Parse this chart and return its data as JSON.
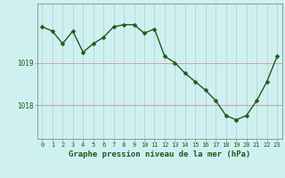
{
  "x": [
    0,
    1,
    2,
    3,
    4,
    5,
    6,
    7,
    8,
    9,
    10,
    11,
    12,
    13,
    14,
    15,
    16,
    17,
    18,
    19,
    20,
    21,
    22,
    23
  ],
  "y": [
    1019.85,
    1019.75,
    1019.45,
    1019.75,
    1019.25,
    1019.45,
    1019.6,
    1019.85,
    1019.9,
    1019.9,
    1019.7,
    1019.8,
    1019.15,
    1019.0,
    1018.75,
    1018.55,
    1018.35,
    1018.1,
    1017.75,
    1017.65,
    1017.75,
    1018.1,
    1018.55,
    1019.15
  ],
  "line_color": "#1a5c1a",
  "marker": "D",
  "marker_size": 2.5,
  "bg_color": "#cff0f0",
  "hgrid_color": "#c8a0a0",
  "vgrid_color": "#b8c8c8",
  "title": "Graphe pression niveau de la mer (hPa)",
  "ylabel_ticks": [
    1018,
    1019
  ],
  "ylim": [
    1017.2,
    1020.4
  ],
  "xlim": [
    -0.5,
    23.5
  ],
  "tick_color": "#1a5c1a",
  "axis_color": "#888888",
  "title_fontsize": 6.5,
  "xtick_fontsize": 5.0,
  "ytick_fontsize": 5.5
}
